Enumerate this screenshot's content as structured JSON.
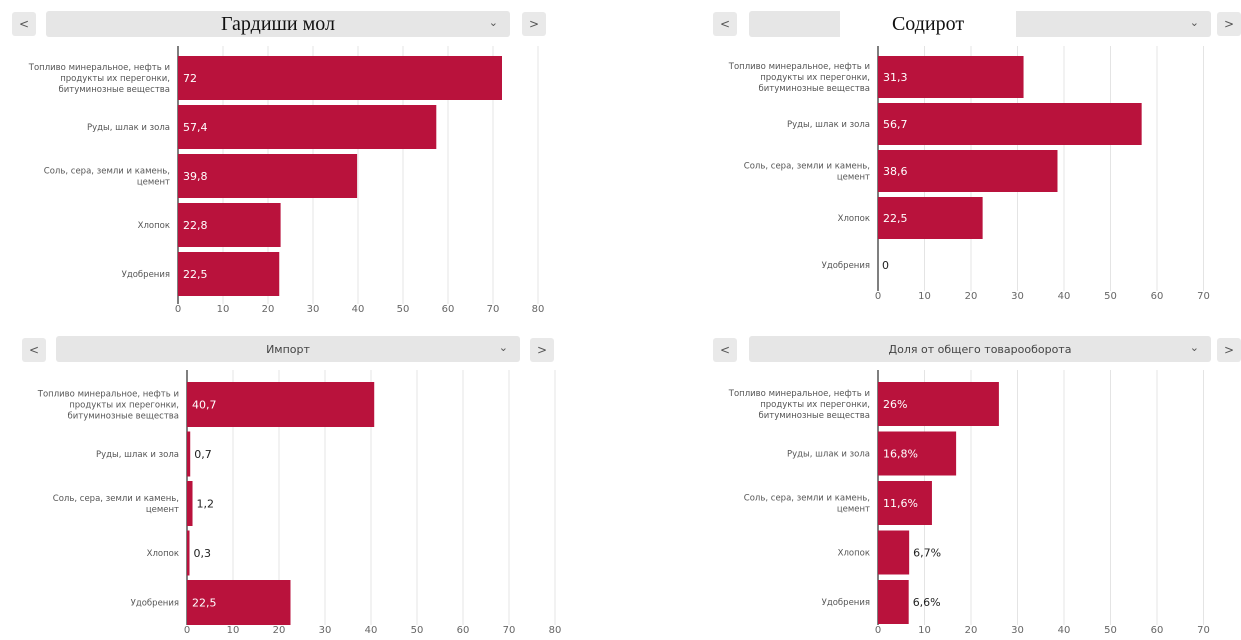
{
  "ui": {
    "prev_symbol": "<",
    "next_symbol": ">",
    "chevron_symbol": "⌄",
    "accent_color": "#b9123c"
  },
  "panels": [
    {
      "title": "Гардиши мол"
    },
    {
      "title": "Содирот"
    },
    {
      "title": "Импорт"
    },
    {
      "title": "Доля от общего товарооборота"
    }
  ],
  "chart_data": [
    {
      "type": "bar",
      "orientation": "horizontal",
      "categories": [
        "Топливо минеральное, нефть и продукты их перегонки, битуминозные вещества",
        "Руды, шлак и зола",
        "Соль, сера, земли и камень, цемент",
        "Хлопок",
        "Удобрения"
      ],
      "values": [
        72,
        57.4,
        39.8,
        22.8,
        22.5
      ],
      "value_labels": [
        "72",
        "57,4",
        "39,8",
        "22,8",
        "22,5"
      ],
      "xlim": [
        0,
        80
      ],
      "ticks": [
        0,
        10,
        20,
        30,
        40,
        50,
        60,
        70,
        80
      ],
      "grid": true
    },
    {
      "type": "bar",
      "orientation": "horizontal",
      "categories": [
        "Топливо минеральное, нефть и продукты их перегонки, битуминозные вещества",
        "Руды, шлак и зола",
        "Соль, сера, земли и камень, цемент",
        "Хлопок",
        "Удобрения"
      ],
      "values": [
        31.3,
        56.7,
        38.6,
        22.5,
        0
      ],
      "value_labels": [
        "31,3",
        "56,7",
        "38,6",
        "22,5",
        "0"
      ],
      "xlim": [
        0,
        80
      ],
      "ticks": [
        0,
        10,
        20,
        30,
        40,
        50,
        60,
        70,
        80
      ],
      "grid": true
    },
    {
      "type": "bar",
      "orientation": "horizontal",
      "categories": [
        "Топливо минеральное, нефть и продукты их перегонки, битуминозные вещества",
        "Руды, шлак и зола",
        "Соль, сера, земли и камень, цемент",
        "Хлопок",
        "Удобрения"
      ],
      "values": [
        40.7,
        0.7,
        1.2,
        0.3,
        22.5
      ],
      "value_labels": [
        "40,7",
        "0,7",
        "1,2",
        "0,3",
        "22,5"
      ],
      "xlim": [
        0,
        80
      ],
      "ticks": [
        0,
        10,
        20,
        30,
        40,
        50,
        60,
        70,
        80
      ],
      "grid": true
    },
    {
      "type": "bar",
      "orientation": "horizontal",
      "categories": [
        "Топливо минеральное, нефть и продукты их перегонки, битуминозные вещества",
        "Руды, шлак и зола",
        "Соль, сера, земли и камень, цемент",
        "Хлопок",
        "Удобрения"
      ],
      "values": [
        26,
        16.8,
        11.6,
        6.7,
        6.6
      ],
      "value_labels": [
        "26%",
        "16,8%",
        "11,6%",
        "6,7%",
        "6,6%"
      ],
      "xlim": [
        0,
        80
      ],
      "ticks": [
        0,
        10,
        20,
        30,
        40,
        50,
        60,
        70,
        80
      ],
      "grid": true
    }
  ]
}
